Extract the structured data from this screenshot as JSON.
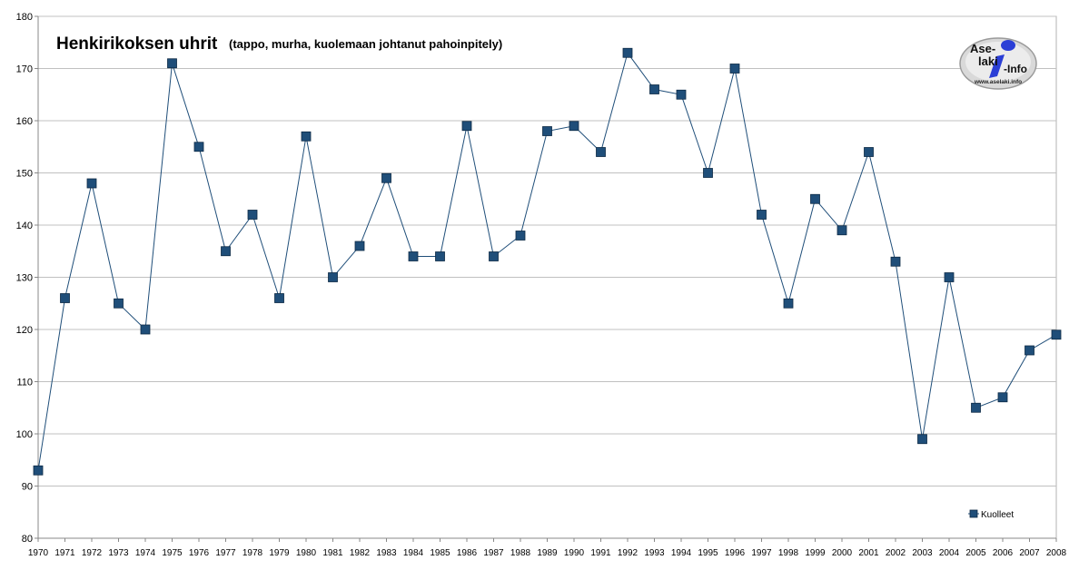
{
  "chart_data": {
    "type": "line",
    "title": "Henkirikoksen uhrit",
    "subtitle": "(tappo, murha, kuolemaan johtanut pahoinpitely)",
    "xlabel": "",
    "ylabel": "",
    "x": [
      "1970",
      "1971",
      "1972",
      "1973",
      "1974",
      "1975",
      "1976",
      "1977",
      "1978",
      "1979",
      "1980",
      "1981",
      "1982",
      "1983",
      "1984",
      "1985",
      "1986",
      "1987",
      "1988",
      "1989",
      "1990",
      "1991",
      "1992",
      "1993",
      "1994",
      "1995",
      "1996",
      "1997",
      "1998",
      "1999",
      "2000",
      "2001",
      "2002",
      "2003",
      "2004",
      "2005",
      "2006",
      "2007",
      "2008"
    ],
    "series": [
      {
        "name": "Kuolleet",
        "values": [
          93,
          126,
          148,
          125,
          120,
          171,
          155,
          135,
          142,
          126,
          157,
          130,
          136,
          149,
          134,
          134,
          159,
          134,
          138,
          158,
          159,
          154,
          173,
          166,
          165,
          150,
          170,
          142,
          125,
          145,
          139,
          154,
          133,
          99,
          130,
          105,
          107,
          116,
          119
        ],
        "color": "#1f4e79"
      }
    ],
    "ylim": [
      80,
      180
    ],
    "yticks": [
      80,
      90,
      100,
      110,
      120,
      130,
      140,
      150,
      160,
      170,
      180
    ],
    "grid": true,
    "legend_position": "bottom-right",
    "colors": {
      "line": "#1f4e79",
      "marker": "#1f4e79",
      "grid": "#c0c0c0",
      "axis": "#888888"
    }
  },
  "logo": {
    "line1": "Ase-",
    "line2": "laki",
    "line3": "-Info",
    "url": "www.aselaki.info"
  }
}
